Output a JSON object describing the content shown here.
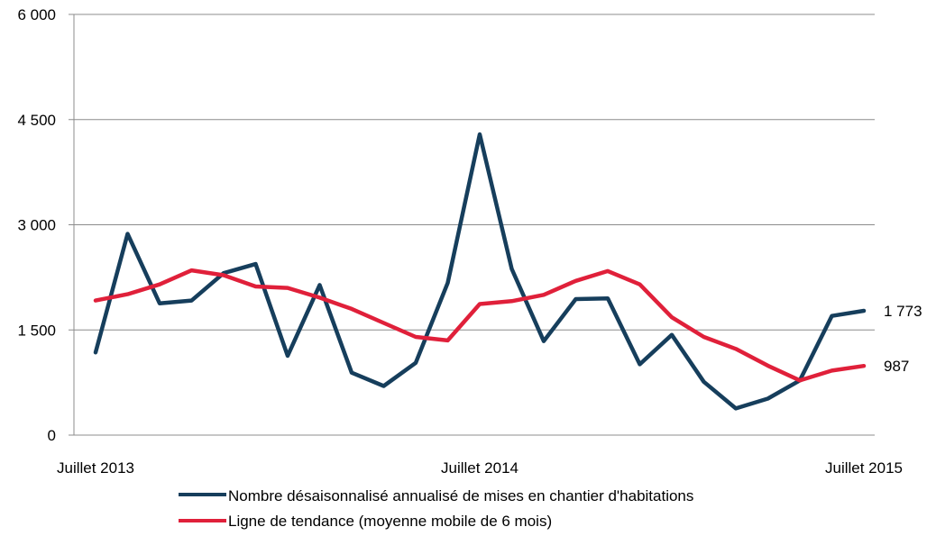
{
  "chart_data": {
    "type": "line",
    "title": "",
    "xlabel": "",
    "ylabel": "",
    "ylim": [
      0,
      6000
    ],
    "y_ticks": [
      0,
      1500,
      3000,
      4500,
      6000
    ],
    "y_tick_labels": [
      "0",
      "1 500",
      "3 000",
      "4 500",
      "6 000"
    ],
    "x_tick_labels": [
      {
        "label": "Juillet 2013",
        "index": 0
      },
      {
        "label": "Juillet 2014",
        "index": 12
      },
      {
        "label": "Juillet 2015",
        "index": 24
      }
    ],
    "grid": true,
    "legend_position": "bottom",
    "series": [
      {
        "name": "Nombre désaisonnalisé annualisé de mises en chantier d'habitations",
        "color": "#163e5c",
        "values": [
          1180,
          2870,
          1880,
          1920,
          2310,
          2440,
          1130,
          2140,
          890,
          700,
          1030,
          2170,
          4290,
          2370,
          1340,
          1940,
          1950,
          1010,
          1430,
          760,
          380,
          520,
          780,
          1700,
          1773
        ]
      },
      {
        "name": "Ligne de tendance (moyenne mobile de 6 mois)",
        "color": "#e0203a",
        "values": [
          1920,
          2010,
          2150,
          2350,
          2280,
          2120,
          2100,
          1960,
          1800,
          1600,
          1400,
          1350,
          1870,
          1910,
          2000,
          2200,
          2340,
          2150,
          1680,
          1400,
          1230,
          990,
          780,
          920,
          987
        ]
      }
    ],
    "annotations": [
      {
        "text": "1 773",
        "series": 0,
        "index": 24
      },
      {
        "text": "987",
        "series": 1,
        "index": 24
      }
    ]
  }
}
